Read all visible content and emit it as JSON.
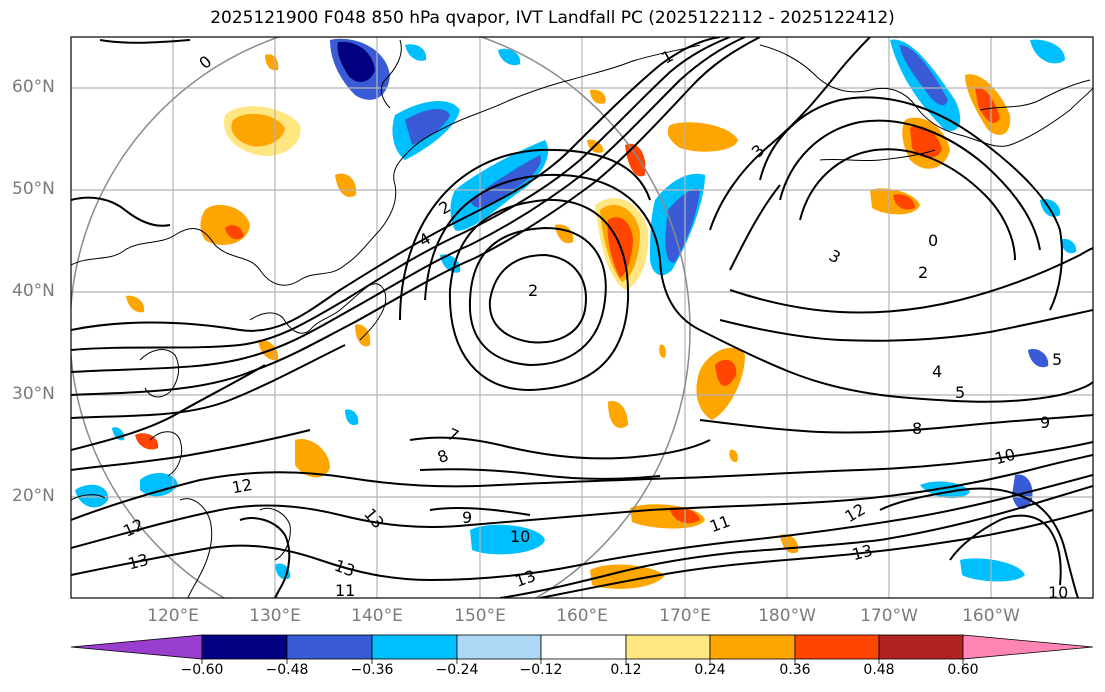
{
  "title": "2025121900 F048 850 hPa qvapor, IVT Landfall PC (2025122112 - 2025122412)",
  "latitude_labels": [
    "60°N",
    "50°N",
    "40°N",
    "30°N",
    "20°N"
  ],
  "longitude_labels": [
    "120°E",
    "130°E",
    "140°E",
    "150°E",
    "160°E",
    "170°E",
    "180°W",
    "170°W",
    "160°W"
  ],
  "colorbar": {
    "tick_labels": [
      "−0.60",
      "−0.48",
      "−0.36",
      "−0.24",
      "−0.12",
      "0.12",
      "0.24",
      "0.36",
      "0.48",
      "0.60"
    ],
    "colors": [
      "#9a3ecf",
      "#000080",
      "#3a5bd6",
      "#00bfff",
      "#add8f5",
      "#ffffff",
      "#ffe680",
      "#ffa500",
      "#ff4500",
      "#b22222",
      "#ff85b5"
    ]
  },
  "contour_labels": [
    "0",
    "1",
    "2",
    "3",
    "4",
    "5",
    "7",
    "8",
    "9",
    "10",
    "11",
    "12",
    "13"
  ]
}
